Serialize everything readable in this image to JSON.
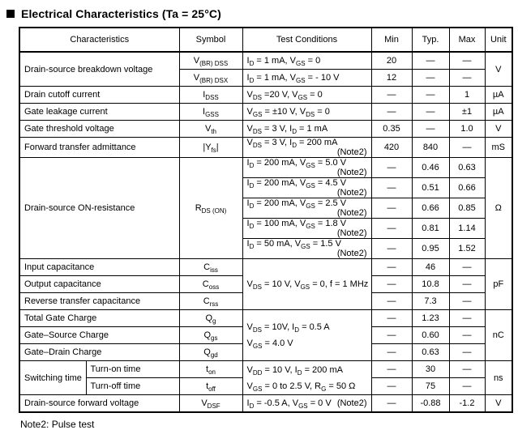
{
  "title": {
    "text": "Electrical Characteristics (Ta = 25°C)"
  },
  "footer_note": "Note2: Pulse test",
  "table": {
    "headers": {
      "characteristics": "Characteristics",
      "symbol": "Symbol",
      "test_conditions": "Test Conditions",
      "min": "Min",
      "typ": "Typ.",
      "max": "Max",
      "unit": "Unit"
    },
    "groups": {
      "breakdown": {
        "name": "Drain-source breakdown voltage",
        "unit": "V",
        "sub": [
          {
            "symbol": "V~(BR) DSS~",
            "cond": "I~D~ = 1 mA, V~GS~ = 0",
            "min": "20",
            "typ": "—",
            "max": "—"
          },
          {
            "symbol": "V~(BR) DSX~",
            "cond": "I~D~ = 1 mA, V~GS~ = - 10 V",
            "min": "12",
            "typ": "—",
            "max": "—"
          }
        ]
      },
      "cutoff": {
        "name": "Drain cutoff current",
        "symbol": "I~DSS~",
        "cond": "V~DS~ =20 V, V~GS~ = 0",
        "min": "—",
        "typ": "—",
        "max": "1",
        "unit": "µA"
      },
      "leakage": {
        "name": "Gate leakage current",
        "symbol": "I~GSS~",
        "cond": "V~GS~ = ±10 V, V~DS~ = 0",
        "min": "—",
        "typ": "—",
        "max": "±1",
        "unit": "µA"
      },
      "threshold": {
        "name": "Gate threshold voltage",
        "symbol": "V~th~",
        "cond": "V~DS~ = 3 V, I~D~ = 1 mA",
        "min": "0.35",
        "typ": "—",
        "max": "1.0",
        "unit": "V"
      },
      "admittance": {
        "name": "Forward transfer admittance",
        "symbol": "|Y~fs~|",
        "cond": "V~DS~ = 3 V, I~D~ = 200 mA",
        "note": "(Note2)",
        "min": "420",
        "typ": "840",
        "max": "—",
        "unit": "mS"
      },
      "on_resistance": {
        "name": "Drain-source ON-resistance",
        "symbol": "R~DS (ON)~",
        "unit": "Ω",
        "sub": [
          {
            "cond": "I~D~ = 200 mA, V~GS~ = 5.0 V",
            "note": "(Note2)",
            "min": "—",
            "typ": "0.46",
            "max": "0.63"
          },
          {
            "cond": "I~D~ = 200 mA, V~GS~ = 4.5 V",
            "note": "(Note2)",
            "min": "—",
            "typ": "0.51",
            "max": "0.66"
          },
          {
            "cond": "I~D~ = 200 mA, V~GS~ = 2.5 V",
            "note": "(Note2)",
            "min": "—",
            "typ": "0.66",
            "max": "0.85"
          },
          {
            "cond": "I~D~ = 100 mA, V~GS~ = 1.8 V",
            "note": "(Note2)",
            "min": "—",
            "typ": "0.81",
            "max": "1.14"
          },
          {
            "cond": "I~D~ = 50 mA, V~GS~ = 1.5 V",
            "note": "(Note2)",
            "min": "—",
            "typ": "0.95",
            "max": "1.52"
          }
        ]
      },
      "capacitance": {
        "cond": "V~DS~ = 10 V, V~GS~ = 0, f = 1 MHz",
        "unit": "pF",
        "sub": [
          {
            "name": "Input capacitance",
            "symbol": "C~iss~",
            "min": "—",
            "typ": "46",
            "max": "—"
          },
          {
            "name": "Output capacitance",
            "symbol": "C~oss~",
            "min": "—",
            "typ": "10.8",
            "max": "—"
          },
          {
            "name": "Reverse transfer capacitance",
            "symbol": "C~rss~",
            "min": "—",
            "typ": "7.3",
            "max": "—"
          }
        ]
      },
      "charge": {
        "cond_line1": "V~DS~ = 10V, I~D~ = 0.5 A",
        "cond_line2": "V~GS~ = 4.0 V",
        "unit": "nC",
        "sub": [
          {
            "name": "Total Gate Charge",
            "symbol": "Q~g~",
            "min": "—",
            "typ": "1.23",
            "max": "—"
          },
          {
            "name": "Gate–Source Charge",
            "symbol": "Q~gs~",
            "min": "—",
            "typ": "0.60",
            "max": "—"
          },
          {
            "name": "Gate–Drain Charge",
            "symbol": "Q~gd~",
            "min": "—",
            "typ": "0.63",
            "max": "—"
          }
        ]
      },
      "switching": {
        "name": "Switching time",
        "cond_line1": "V~DD~ = 10 V, I~D~ = 200 mA",
        "cond_line2": "V~GS~ = 0 to 2.5 V, R~G~ = 50 Ω",
        "unit": "ns",
        "sub": [
          {
            "name": "Turn-on time",
            "symbol": "t~on~",
            "min": "—",
            "typ": "30",
            "max": "—"
          },
          {
            "name": "Turn-off time",
            "symbol": "t~off~",
            "min": "—",
            "typ": "75",
            "max": "—"
          }
        ]
      },
      "forward_voltage": {
        "name": "Drain-source forward voltage",
        "symbol": "V~DSF~",
        "cond": "I~D~ = -0.5 A, V~GS~ = 0 V",
        "note": "(Note2)",
        "min": "—",
        "typ": "-0.88",
        "max": "-1.2",
        "unit": "V"
      }
    }
  }
}
